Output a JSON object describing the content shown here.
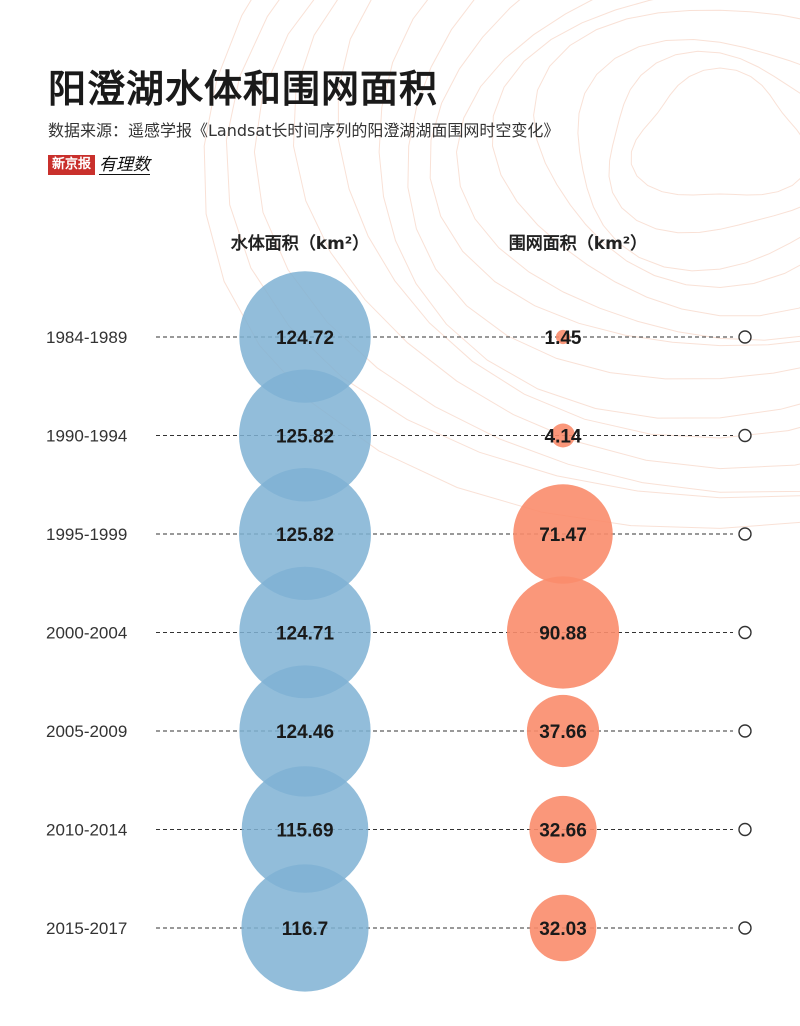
{
  "header": {
    "title": "阳澄湖水体和围网面积",
    "source": "数据来源：遥感学报《Landsat长时间序列的阳澄湖湖面围网时空变化》",
    "brand_box": "新京报",
    "brand_script": "有理数"
  },
  "colors": {
    "water": "#7fb2d4",
    "net": "#f98c6c",
    "line": "#333333",
    "contour": "#f4c9b4"
  },
  "chart_data": {
    "type": "bubble",
    "categories": [
      "1984-1989",
      "1990-1994",
      "1995-1999",
      "2000-2004",
      "2005-2009",
      "2010-2014",
      "2015-2017"
    ],
    "series": [
      {
        "name": "水体面积（km²）",
        "values": [
          124.72,
          125.82,
          125.82,
          124.71,
          124.46,
          115.69,
          116.7
        ]
      },
      {
        "name": "围网面积（km²）",
        "values": [
          1.45,
          4.14,
          71.47,
          90.88,
          37.66,
          32.66,
          32.03
        ]
      }
    ],
    "data_labels": {
      "water": [
        "124.72",
        "125.82",
        "125.82",
        "124.71",
        "124.46",
        "115.69",
        "116.7"
      ],
      "net": [
        "1.45",
        "4.14",
        "71.47",
        "90.88",
        "37.66",
        "32.66",
        "32.03"
      ]
    }
  }
}
